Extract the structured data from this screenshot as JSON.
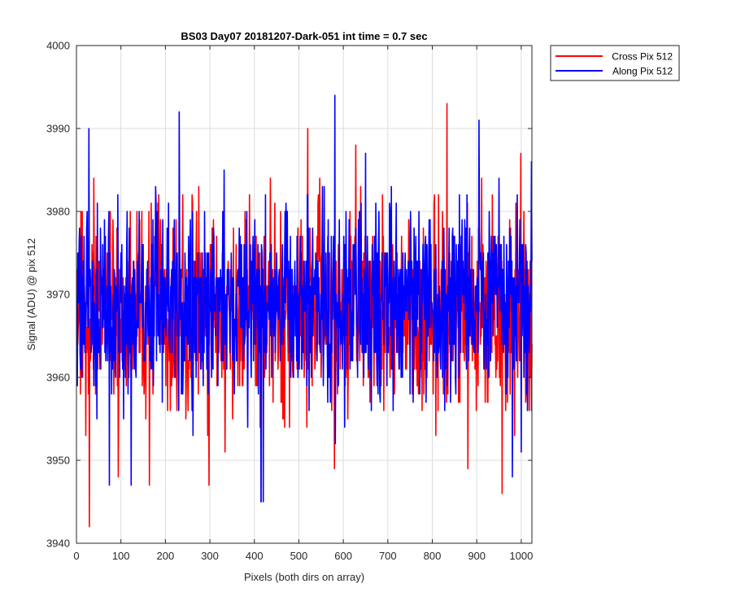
{
  "chart_data": {
    "type": "line",
    "title": "BS03 Day07 20181207-Dark-051 int time = 0.7 sec",
    "xlabel": "Pixels (both dirs on array)",
    "ylabel": "Signal (ADU) @ pix 512",
    "xlim": [
      0,
      1024
    ],
    "ylim": [
      3940,
      4000
    ],
    "xticks": [
      0,
      100,
      200,
      300,
      400,
      500,
      600,
      700,
      800,
      900,
      1000
    ],
    "yticks": [
      3940,
      3950,
      3960,
      3970,
      3980,
      3990,
      4000
    ],
    "grid": true,
    "legend_position": "outside-top-right",
    "series": [
      {
        "name": "Cross Pix 512",
        "color": "#ff0000",
        "x_start": 1,
        "x_step": 1,
        "noise": {
          "mean": 3968,
          "sd": 6,
          "min": 3942,
          "max": 3993
        },
        "notable_points": [
          [
            29,
            3942
          ],
          [
            94,
            3948
          ],
          [
            164,
            3947
          ],
          [
            298,
            3947
          ],
          [
            415,
            3945
          ],
          [
            520,
            3990
          ],
          [
            833,
            3993
          ],
          [
            880,
            3949
          ],
          [
            957,
            3946
          ]
        ]
      },
      {
        "name": "Along Pix 512",
        "color": "#0000ff",
        "x_start": 1,
        "x_step": 1,
        "noise": {
          "mean": 3969,
          "sd": 6,
          "min": 3945,
          "max": 3994
        },
        "notable_points": [
          [
            28,
            3990
          ],
          [
            74,
            3947
          ],
          [
            123,
            3947
          ],
          [
            231,
            3992
          ],
          [
            415,
            3945
          ],
          [
            420,
            3945
          ],
          [
            581,
            3994
          ],
          [
            905,
            3991
          ],
          [
            980,
            3948
          ],
          [
            1023,
            3986
          ]
        ]
      }
    ]
  },
  "axes": {
    "x_tick_labels": [
      "0",
      "100",
      "200",
      "300",
      "400",
      "500",
      "600",
      "700",
      "800",
      "900",
      "1000"
    ],
    "y_tick_labels": [
      "3940",
      "3950",
      "3960",
      "3970",
      "3980",
      "3990",
      "4000"
    ]
  },
  "legend": {
    "items": [
      {
        "label": "Cross Pix 512",
        "color": "#ff0000"
      },
      {
        "label": "Along Pix 512",
        "color": "#0000ff"
      }
    ]
  }
}
